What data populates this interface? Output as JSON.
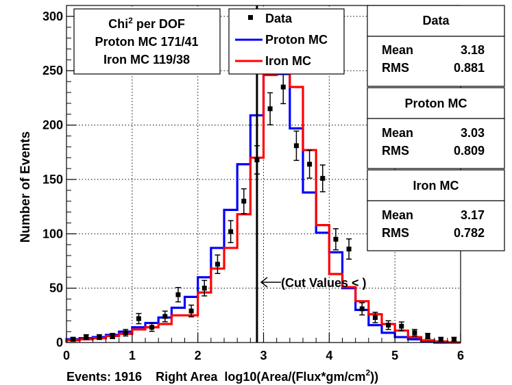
{
  "chart_data": {
    "type": "histogram",
    "title": "",
    "xlabel_prefix": "Events: 1916    Right Area  log10(Area/(Flux*gm/cm",
    "xlabel_sup": "2",
    "xlabel_suffix": "))",
    "ylabel": "Number of Events",
    "xlim": [
      0,
      6
    ],
    "ylim": [
      0,
      310
    ],
    "xticks": [
      0,
      1,
      2,
      3,
      4,
      5,
      6
    ],
    "yticks": [
      0,
      50,
      100,
      150,
      200,
      250,
      300
    ],
    "bin_width": 0.2,
    "bins": [
      0.0,
      0.2,
      0.4,
      0.6,
      0.8,
      1.0,
      1.2,
      1.4,
      1.6,
      1.8,
      2.0,
      2.2,
      2.4,
      2.6,
      2.8,
      3.0,
      3.2,
      3.4,
      3.6,
      3.8,
      4.0,
      4.2,
      4.4,
      4.6,
      4.8,
      5.0,
      5.2,
      5.4,
      5.6,
      5.8
    ],
    "series": [
      {
        "name": "Data",
        "kind": "points",
        "color": "#000000",
        "x": [
          0.1,
          0.3,
          0.5,
          0.7,
          0.9,
          1.1,
          1.3,
          1.5,
          1.7,
          1.9,
          2.1,
          2.3,
          2.5,
          2.7,
          2.9,
          3.1,
          3.3,
          3.5,
          3.7,
          3.9,
          4.1,
          4.3,
          4.5,
          4.7,
          4.9,
          5.1,
          5.3,
          5.5,
          5.7,
          5.9
        ],
        "values": [
          3,
          5,
          5,
          6,
          9,
          22,
          14,
          24,
          44,
          29,
          50,
          72,
          102,
          130,
          168,
          215,
          235,
          181,
          164,
          151,
          95,
          86,
          31,
          23,
          16,
          15,
          9,
          6,
          3,
          3
        ],
        "errors": [
          1.7,
          2.2,
          2.2,
          2.4,
          3,
          4.7,
          3.7,
          4.9,
          6.6,
          5.4,
          7.1,
          8.5,
          10.1,
          11.4,
          13,
          14.7,
          15.3,
          13.5,
          12.8,
          12.3,
          9.7,
          9.3,
          5.6,
          4.8,
          4,
          3.9,
          3,
          2.4,
          1.7,
          1.7
        ]
      },
      {
        "name": "Proton MC",
        "kind": "step",
        "color": "#0000ff",
        "values": [
          3,
          4,
          5,
          7,
          10,
          14,
          18,
          23,
          32,
          42,
          60,
          87,
          122,
          164,
          209,
          251,
          247,
          197,
          138,
          101,
          83,
          50,
          30,
          16,
          9,
          5,
          3,
          1,
          0,
          0
        ]
      },
      {
        "name": "Iron MC",
        "kind": "step",
        "color": "#ff0000",
        "values": [
          2,
          3,
          4,
          6,
          8,
          12,
          14,
          17,
          25,
          25,
          46,
          68,
          87,
          118,
          170,
          246,
          256,
          235,
          177,
          108,
          63,
          51,
          38,
          26,
          17,
          11,
          5,
          2,
          1,
          0
        ]
      }
    ],
    "cut_line_x": 2.9,
    "cut_label": "(Cut Values < )",
    "chi_box": {
      "title": "Chi",
      "title_sup": "2",
      "title_suffix": " per DOF",
      "lines": [
        "Proton MC 171/41",
        "Iron MC 119/38"
      ]
    },
    "legend": [
      {
        "label": "Data",
        "kind": "point"
      },
      {
        "label": "Proton MC",
        "kind": "line",
        "color": "#0000ff"
      },
      {
        "label": "Iron MC",
        "kind": "line",
        "color": "#ff0000"
      }
    ],
    "stats": [
      {
        "title": "Data",
        "rows": [
          [
            "Mean",
            "3.18"
          ],
          [
            "RMS",
            "0.881"
          ]
        ]
      },
      {
        "title": "Proton MC",
        "rows": [
          [
            "Mean",
            "3.03"
          ],
          [
            "RMS",
            "0.809"
          ]
        ]
      },
      {
        "title": "Iron MC",
        "rows": [
          [
            "Mean",
            "3.17"
          ],
          [
            "RMS",
            "0.782"
          ]
        ]
      }
    ]
  }
}
